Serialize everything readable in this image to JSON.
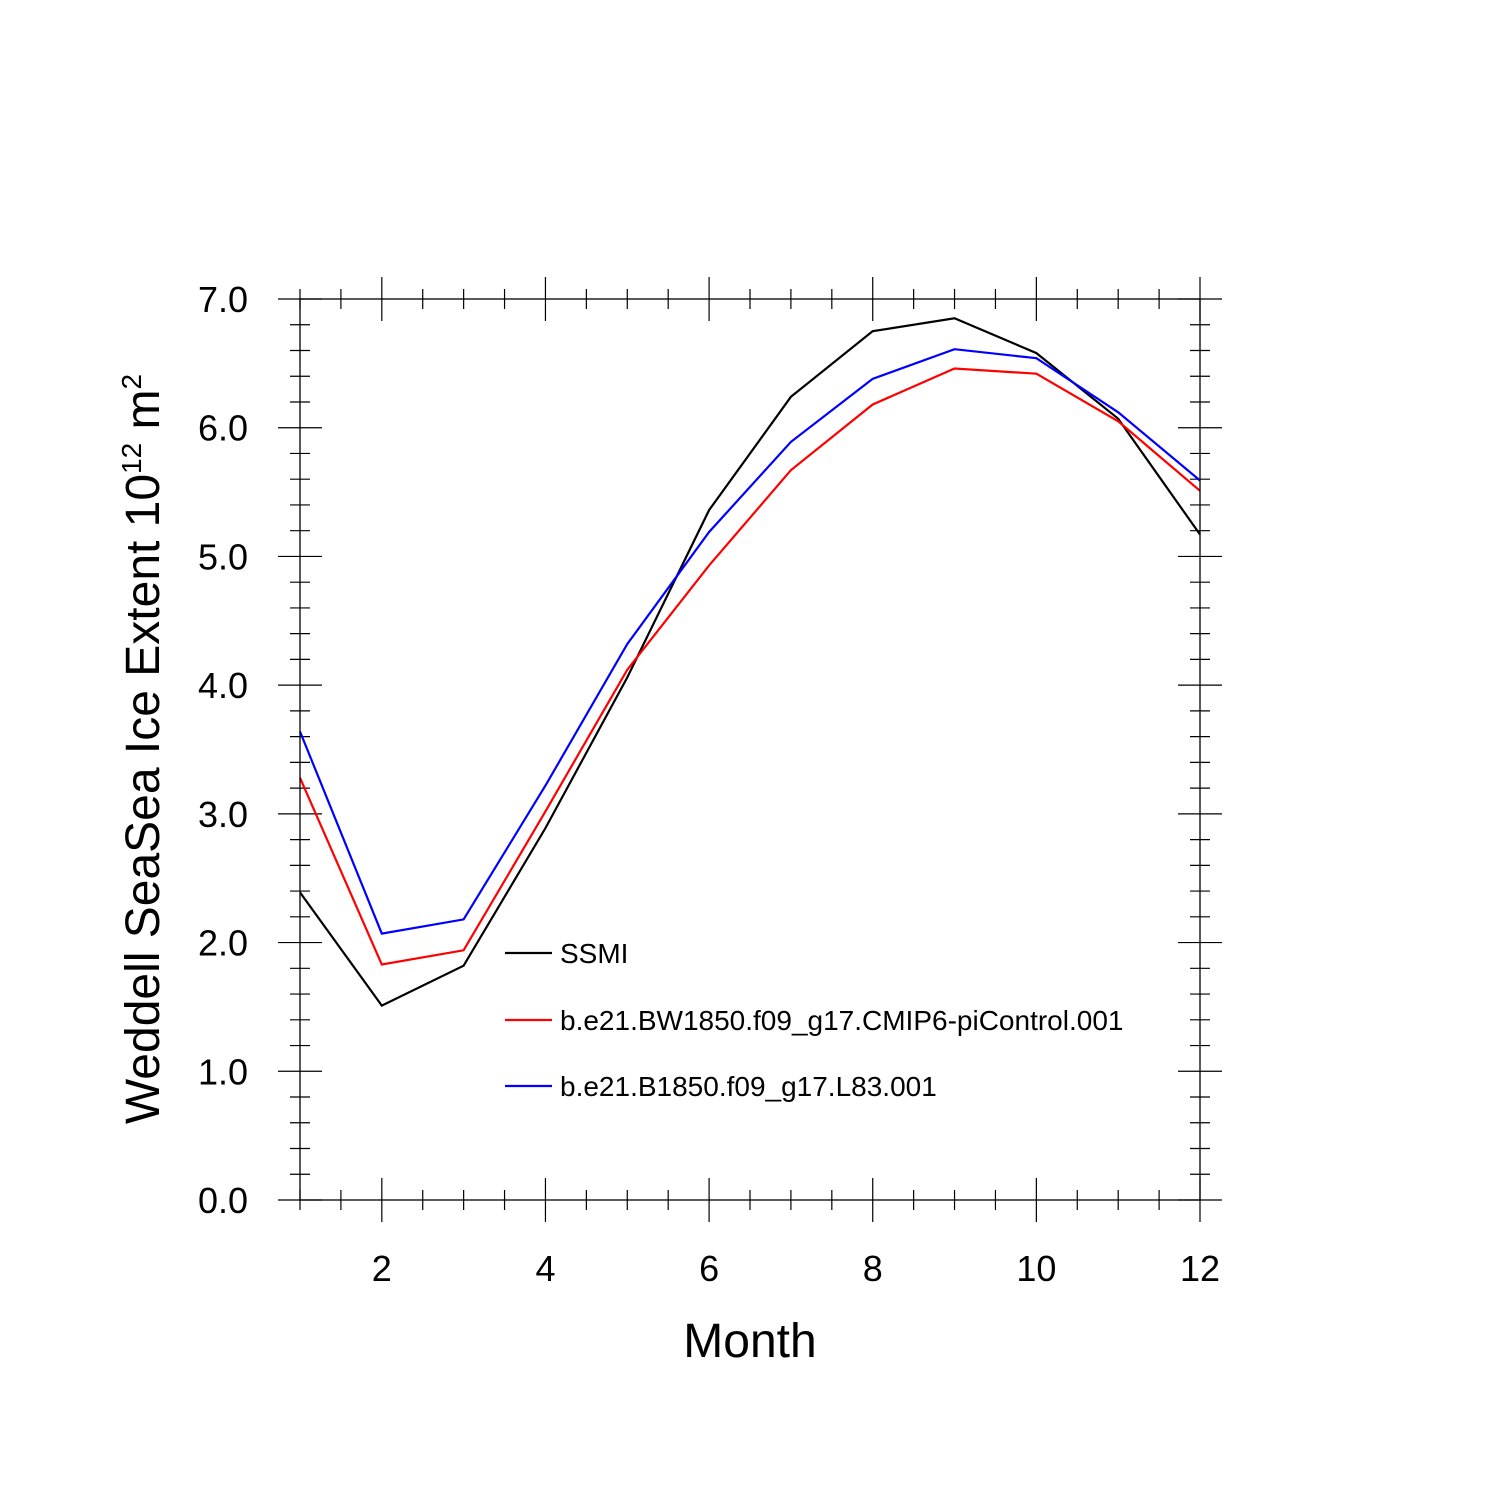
{
  "chart_data": {
    "type": "line",
    "title": "",
    "xlabel": "Month",
    "ylabel_main": "Weddell SeaSea Ice Extent 10",
    "ylabel_sup": "12",
    "ylabel_unit": " m",
    "ylabel_unit_sup": "2",
    "xlim": [
      1,
      12
    ],
    "ylim": [
      0,
      7
    ],
    "x_ticks": [
      2,
      4,
      6,
      8,
      10,
      12
    ],
    "x_tick_labels": [
      "2",
      "4",
      "6",
      "8",
      "10",
      "12"
    ],
    "y_ticks": [
      0,
      1,
      2,
      3,
      4,
      5,
      6,
      7
    ],
    "y_tick_labels": [
      "0.0",
      "1.0",
      "2.0",
      "3.0",
      "4.0",
      "5.0",
      "6.0",
      "7.0"
    ],
    "grid": false,
    "legend_position": "center",
    "x": [
      1,
      2,
      3,
      4,
      5,
      6,
      7,
      8,
      9,
      10,
      11,
      12
    ],
    "series": [
      {
        "name": "SSMI",
        "color": "#000000",
        "values": [
          2.39,
          1.51,
          1.82,
          2.89,
          4.06,
          5.36,
          6.24,
          6.75,
          6.85,
          6.58,
          6.07,
          5.17
        ]
      },
      {
        "name": "b.e21.BW1850.f09_g17.CMIP6-piControl.001",
        "color": "#ff0000",
        "values": [
          3.28,
          1.83,
          1.94,
          3.02,
          4.12,
          4.93,
          5.67,
          6.18,
          6.46,
          6.42,
          6.05,
          5.51
        ]
      },
      {
        "name": "b.e21.B1850.f09_g17.L83.001",
        "color": "#0000ff",
        "values": [
          3.64,
          2.07,
          2.18,
          3.22,
          4.32,
          5.19,
          5.89,
          6.38,
          6.61,
          6.54,
          6.12,
          5.59
        ]
      }
    ]
  }
}
